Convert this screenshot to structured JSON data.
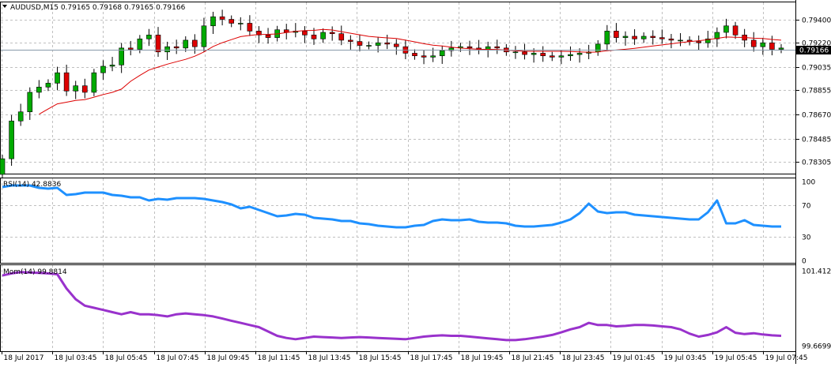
{
  "main_chart": {
    "symbol_header": "AUDUSD,M15  0.79165 0.79168 0.79165 0.79166",
    "current_price_label": "0.79166",
    "price_ticks": [
      "0.79400",
      "0.79220",
      "0.79035",
      "0.78855",
      "0.78670",
      "0.78485",
      "0.78305"
    ]
  },
  "rsi_panel": {
    "header": "RSI(14) 42.8836",
    "ticks": [
      "100",
      "70",
      "30",
      "0"
    ]
  },
  "momentum_panel": {
    "header": "Mom(14) 99.8814",
    "ticks": [
      "101.4121",
      "99.6699"
    ]
  },
  "time_axis": {
    "labels": [
      "18 Jul 2017",
      "18 Jul 03:45",
      "18 Jul 05:45",
      "18 Jul 07:45",
      "18 Jul 09:45",
      "18 Jul 11:45",
      "18 Jul 13:45",
      "18 Jul 15:45",
      "18 Jul 17:45",
      "18 Jul 19:45",
      "18 Jul 21:45",
      "18 Jul 23:45",
      "19 Jul 01:45",
      "19 Jul 03:45",
      "19 Jul 05:45",
      "19 Jul 07:45"
    ]
  },
  "colors": {
    "bull_candle": "#00aa00",
    "bear_candle": "#dd0000",
    "ma_line": "#dd0000",
    "rsi_line": "#1e90ff",
    "momentum_line": "#9932cc",
    "grid": "#c0c0c0",
    "price_label_bg": "#000000"
  },
  "chart_data": [
    {
      "type": "candlestick",
      "title": "AUDUSD,M15",
      "y_range": [
        0.7824,
        0.795
      ],
      "closes": [
        0.7833,
        0.7862,
        0.7869,
        0.7884,
        0.7888,
        0.7891,
        0.7899,
        0.7885,
        0.7889,
        0.7884,
        0.7899,
        0.7904,
        0.7905,
        0.7918,
        0.7917,
        0.7925,
        0.7928,
        0.7915,
        0.7919,
        0.7918,
        0.7924,
        0.7919,
        0.7935,
        0.7942,
        0.794,
        0.7937,
        0.7937,
        0.7931,
        0.7928,
        0.7926,
        0.7932,
        0.793,
        0.7931,
        0.7928,
        0.7925,
        0.793,
        0.7929,
        0.7924,
        0.7923,
        0.792,
        0.792,
        0.7922,
        0.7921,
        0.7919,
        0.7914,
        0.7912,
        0.7911,
        0.7912,
        0.7916,
        0.7918,
        0.7919,
        0.7918,
        0.7917,
        0.7919,
        0.7918,
        0.7915,
        0.7915,
        0.7913,
        0.7914,
        0.7912,
        0.7911,
        0.7912,
        0.7913,
        0.7914,
        0.7915,
        0.7921,
        0.7931,
        0.7926,
        0.7927,
        0.7925,
        0.7927,
        0.7926,
        0.7925,
        0.7924,
        0.7924,
        0.7923,
        0.7922,
        0.7925,
        0.793,
        0.7935,
        0.7928,
        0.7924,
        0.7919,
        0.7922,
        0.7917,
        0.7918
      ]
    },
    {
      "type": "line",
      "name": "RSI(14)",
      "y_range": [
        0,
        100
      ],
      "values": [
        93,
        95,
        95,
        95,
        92,
        91,
        92,
        83,
        84,
        86,
        86,
        86,
        83,
        82,
        80,
        80,
        76,
        78,
        77,
        79,
        79,
        79,
        78,
        76,
        74,
        71,
        66,
        68,
        64,
        60,
        56,
        57,
        59,
        58,
        54,
        53,
        52,
        50,
        50,
        47,
        46,
        44,
        43,
        42,
        42,
        44,
        45,
        50,
        52,
        51,
        51,
        52,
        49,
        48,
        48,
        47,
        44,
        43,
        43,
        44,
        45,
        48,
        52,
        60,
        72,
        62,
        60,
        61,
        61,
        58,
        57,
        56,
        55,
        54,
        53,
        52,
        52,
        61,
        76,
        47,
        47,
        51,
        45,
        44,
        43,
        43
      ]
    },
    {
      "type": "line",
      "name": "Mom(14)",
      "y_range": [
        99.6699,
        101.4121
      ],
      "values": [
        101.3,
        101.35,
        101.38,
        101.37,
        101.36,
        101.35,
        101.33,
        101.0,
        100.75,
        100.6,
        100.55,
        100.5,
        100.45,
        100.4,
        100.45,
        100.4,
        100.4,
        100.38,
        100.35,
        100.4,
        100.42,
        100.4,
        100.38,
        100.35,
        100.3,
        100.25,
        100.2,
        100.15,
        100.1,
        100.0,
        99.9,
        99.85,
        99.82,
        99.85,
        99.88,
        99.87,
        99.86,
        99.85,
        99.86,
        99.87,
        99.86,
        99.85,
        99.84,
        99.83,
        99.82,
        99.85,
        99.88,
        99.9,
        99.91,
        99.9,
        99.9,
        99.88,
        99.86,
        99.84,
        99.82,
        99.8,
        99.8,
        99.82,
        99.85,
        99.88,
        99.92,
        99.98,
        100.05,
        100.1,
        100.2,
        100.15,
        100.15,
        100.12,
        100.13,
        100.15,
        100.15,
        100.14,
        100.12,
        100.1,
        100.05,
        99.95,
        99.88,
        99.92,
        99.98,
        100.1,
        99.97,
        99.94,
        99.96,
        99.93,
        99.91,
        99.9
      ]
    }
  ]
}
